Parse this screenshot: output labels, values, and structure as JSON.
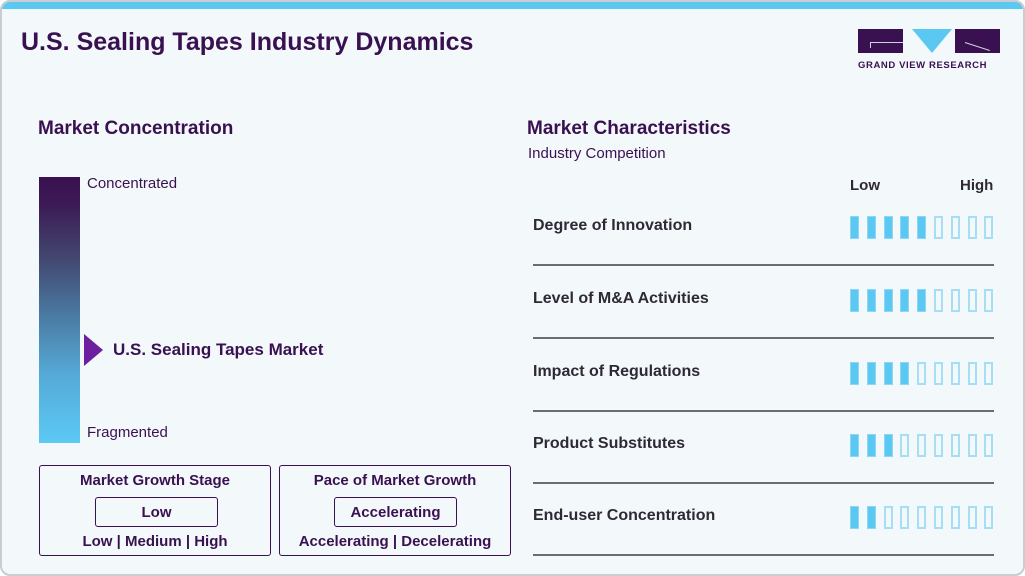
{
  "header": {
    "title": "U.S. Sealing Tapes Industry Dynamics",
    "logo_text": "GRAND VIEW RESEARCH"
  },
  "colors": {
    "primary": "#3a1150",
    "accent": "#5bc8f2",
    "marker": "#6e1fa0"
  },
  "concentration": {
    "heading": "Market Concentration",
    "top_label": "Concentrated",
    "bottom_label": "Fragmented",
    "marker_label": "U.S. Sealing Tapes Market",
    "marker_position_pct": 65
  },
  "growth_stage": {
    "title": "Market Growth Stage",
    "value": "Low",
    "options": "Low | Medium | High"
  },
  "growth_pace": {
    "title": "Pace of Market Growth",
    "value": "Accelerating",
    "options": "Accelerating | Decelerating"
  },
  "characteristics": {
    "heading": "Market Characteristics",
    "subheading": "Industry Competition",
    "scale_low": "Low",
    "scale_high": "High",
    "max_segments": 9,
    "rows": [
      {
        "label": "Degree of Innovation",
        "value": 5
      },
      {
        "label": "Level of M&A Activities",
        "value": 5
      },
      {
        "label": "Impact of Regulations",
        "value": 4
      },
      {
        "label": "Product Substitutes",
        "value": 3
      },
      {
        "label": "End-user Concentration",
        "value": 2
      }
    ]
  }
}
